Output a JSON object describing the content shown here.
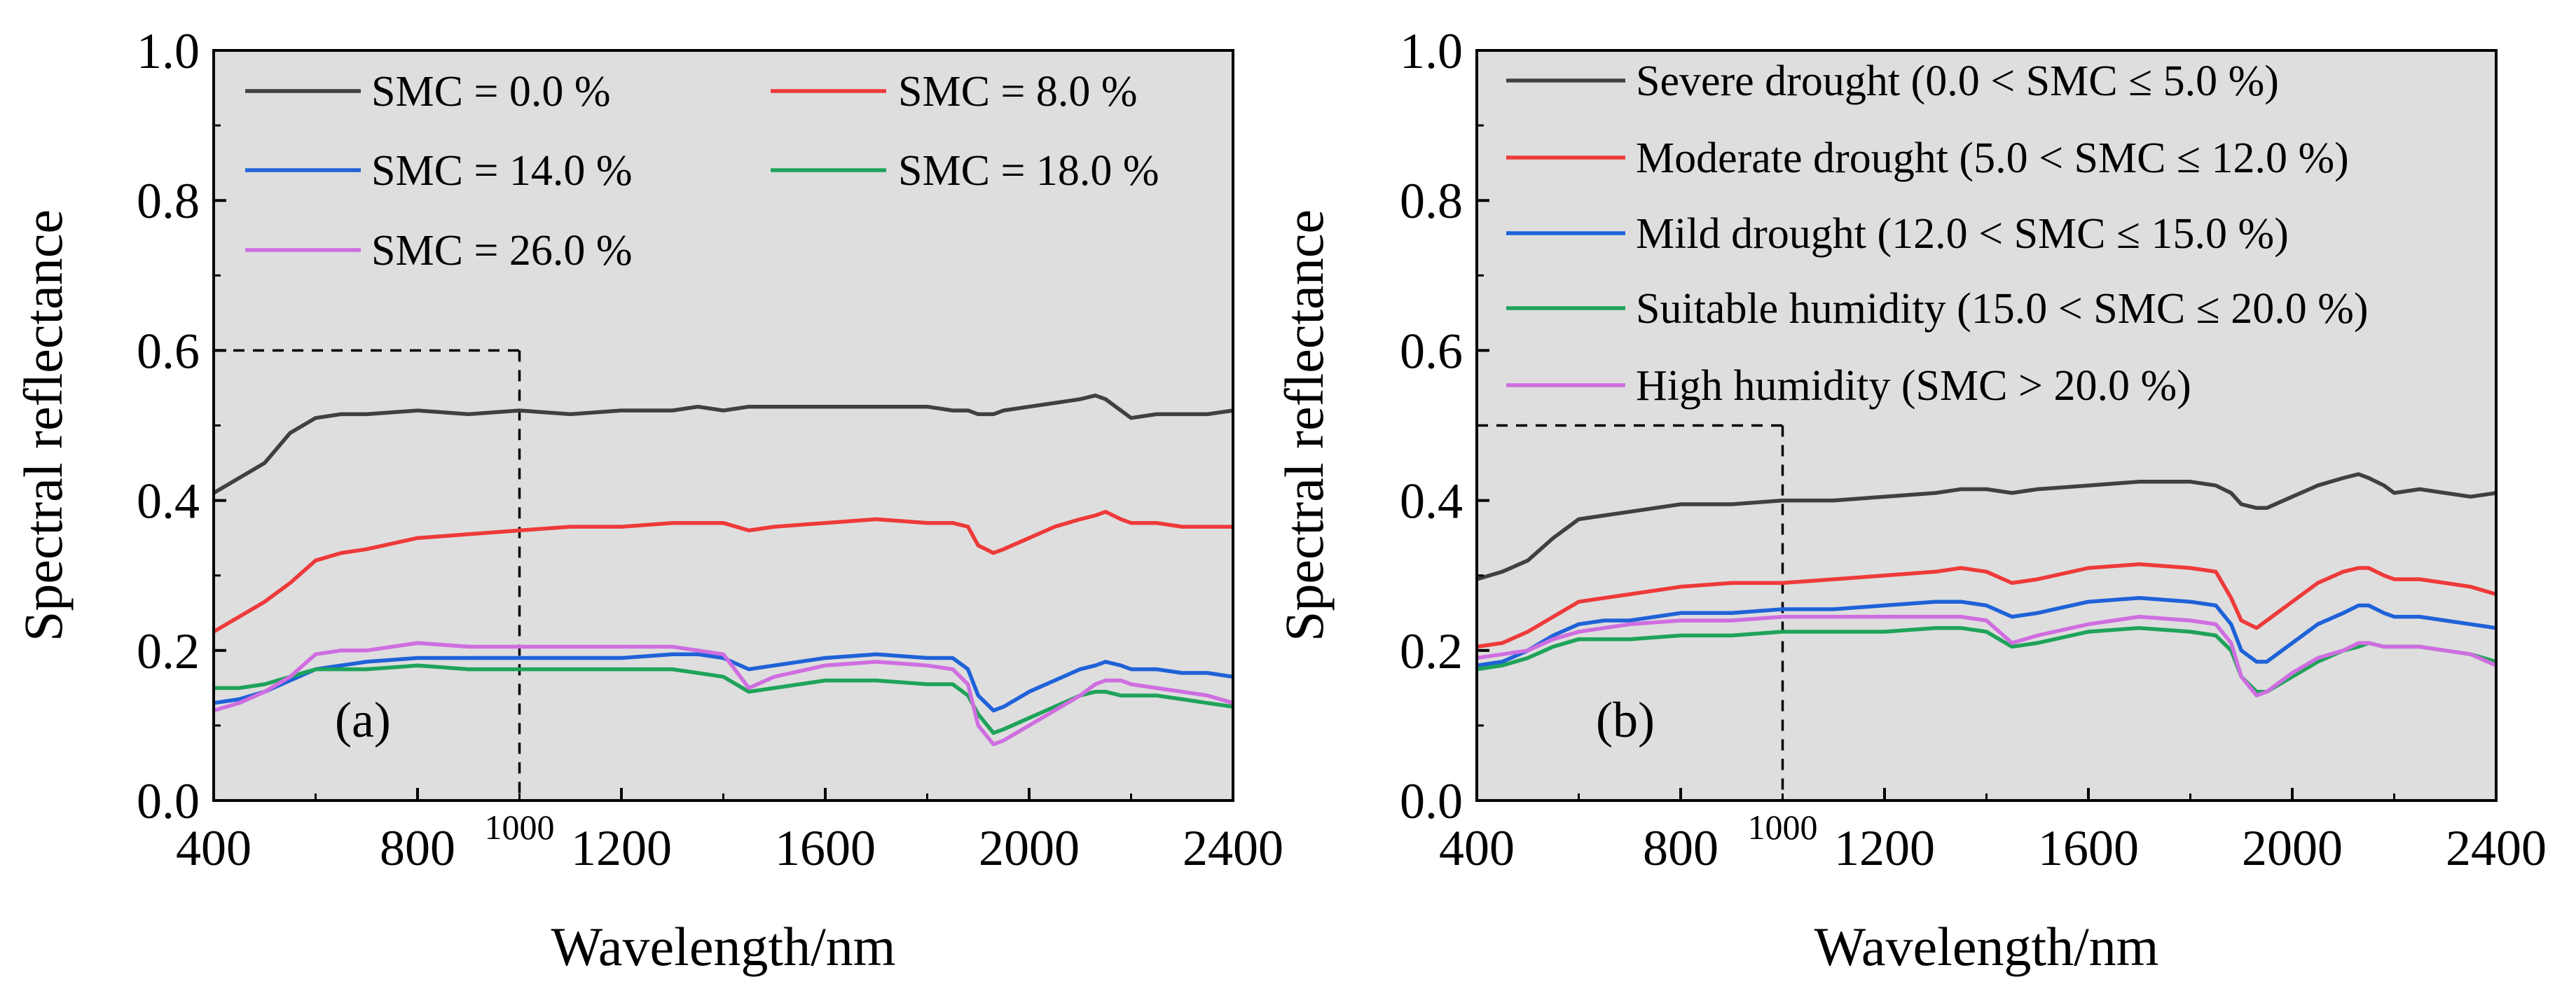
{
  "figure": {
    "background": "#ffffff",
    "plot_background": "#dedede"
  },
  "chart_data": [
    {
      "type": "line",
      "panel_label": "(a)",
      "xlabel": "Wavelength/nm",
      "ylabel": "Spectral reflectance",
      "xlim": [
        400,
        2400
      ],
      "ylim": [
        0.0,
        1.0
      ],
      "xticks": [
        400,
        800,
        1200,
        1600,
        2000,
        2400
      ],
      "yticks": [
        0.0,
        0.2,
        0.4,
        0.6,
        0.8,
        1.0
      ],
      "xtick_labels": [
        "400",
        "800",
        "1200",
        "1600",
        "2000",
        "2400"
      ],
      "ytick_labels": [
        "0.0",
        "0.2",
        "0.4",
        "0.6",
        "0.8",
        "1.0"
      ],
      "extra_tick_label": "1000",
      "extra_tick_value": 1000,
      "reference_box": {
        "x_max": 1000,
        "y_max": 0.6
      },
      "legend_columns": 2,
      "x": [
        400,
        450,
        500,
        550,
        600,
        650,
        700,
        800,
        900,
        1000,
        1100,
        1200,
        1300,
        1350,
        1400,
        1450,
        1500,
        1600,
        1700,
        1800,
        1850,
        1880,
        1900,
        1930,
        1950,
        2000,
        2050,
        2100,
        2130,
        2150,
        2180,
        2200,
        2250,
        2300,
        2350,
        2400
      ],
      "series": [
        {
          "name": "SMC = 0.0 %",
          "label": "SMC = 0.0 %",
          "color": "#404040",
          "values": [
            0.41,
            0.43,
            0.45,
            0.49,
            0.51,
            0.515,
            0.515,
            0.52,
            0.515,
            0.52,
            0.515,
            0.52,
            0.52,
            0.525,
            0.52,
            0.525,
            0.525,
            0.525,
            0.525,
            0.525,
            0.52,
            0.52,
            0.515,
            0.515,
            0.52,
            0.525,
            0.53,
            0.535,
            0.54,
            0.535,
            0.52,
            0.51,
            0.515,
            0.515,
            0.515,
            0.52
          ]
        },
        {
          "name": "SMC = 8.0 %",
          "label": "SMC = 8.0 %",
          "color": "#ee3a3a",
          "values": [
            0.225,
            0.245,
            0.265,
            0.29,
            0.32,
            0.33,
            0.335,
            0.35,
            0.355,
            0.36,
            0.365,
            0.365,
            0.37,
            0.37,
            0.37,
            0.36,
            0.365,
            0.37,
            0.375,
            0.37,
            0.37,
            0.365,
            0.34,
            0.33,
            0.335,
            0.35,
            0.365,
            0.375,
            0.38,
            0.385,
            0.375,
            0.37,
            0.37,
            0.365,
            0.365,
            0.365
          ]
        },
        {
          "name": "SMC = 14.0 %",
          "label": "SMC = 14.0 %",
          "color": "#1f62d8",
          "values": [
            0.13,
            0.135,
            0.145,
            0.16,
            0.175,
            0.18,
            0.185,
            0.19,
            0.19,
            0.19,
            0.19,
            0.19,
            0.195,
            0.195,
            0.19,
            0.175,
            0.18,
            0.19,
            0.195,
            0.19,
            0.19,
            0.175,
            0.14,
            0.12,
            0.125,
            0.145,
            0.16,
            0.175,
            0.18,
            0.185,
            0.18,
            0.175,
            0.175,
            0.17,
            0.17,
            0.165
          ]
        },
        {
          "name": "SMC = 18.0 %",
          "label": "SMC = 18.0 %",
          "color": "#1fa35a",
          "values": [
            0.15,
            0.15,
            0.155,
            0.165,
            0.175,
            0.175,
            0.175,
            0.18,
            0.175,
            0.175,
            0.175,
            0.175,
            0.175,
            0.17,
            0.165,
            0.145,
            0.15,
            0.16,
            0.16,
            0.155,
            0.155,
            0.14,
            0.115,
            0.09,
            0.095,
            0.11,
            0.125,
            0.14,
            0.145,
            0.145,
            0.14,
            0.14,
            0.14,
            0.135,
            0.13,
            0.125
          ]
        },
        {
          "name": "SMC = 26.0 %",
          "label": "SMC = 26.0 %",
          "color": "#cf6ee0",
          "values": [
            0.12,
            0.13,
            0.145,
            0.165,
            0.195,
            0.2,
            0.2,
            0.21,
            0.205,
            0.205,
            0.205,
            0.205,
            0.205,
            0.2,
            0.195,
            0.15,
            0.165,
            0.18,
            0.185,
            0.18,
            0.175,
            0.155,
            0.1,
            0.075,
            0.08,
            0.1,
            0.12,
            0.14,
            0.155,
            0.16,
            0.16,
            0.155,
            0.15,
            0.145,
            0.14,
            0.13
          ]
        }
      ]
    },
    {
      "type": "line",
      "panel_label": "(b)",
      "xlabel": "Wavelength/nm",
      "ylabel": "Spectral reflectance",
      "xlim": [
        400,
        2400
      ],
      "ylim": [
        0.0,
        1.0
      ],
      "xticks": [
        400,
        800,
        1200,
        1600,
        2000,
        2400
      ],
      "yticks": [
        0.0,
        0.2,
        0.4,
        0.6,
        0.8,
        1.0
      ],
      "xtick_labels": [
        "400",
        "800",
        "1200",
        "1600",
        "2000",
        "2400"
      ],
      "ytick_labels": [
        "0.0",
        "0.2",
        "0.4",
        "0.6",
        "0.8",
        "1.0"
      ],
      "extra_tick_label": "1000",
      "extra_tick_value": 1000,
      "reference_box": {
        "x_max": 1000,
        "y_max": 0.5
      },
      "legend_columns": 1,
      "x": [
        400,
        450,
        500,
        550,
        600,
        650,
        700,
        800,
        900,
        1000,
        1100,
        1200,
        1300,
        1350,
        1400,
        1450,
        1500,
        1600,
        1700,
        1800,
        1850,
        1880,
        1900,
        1930,
        1950,
        2000,
        2050,
        2100,
        2130,
        2150,
        2180,
        2200,
        2250,
        2300,
        2350,
        2400
      ],
      "series": [
        {
          "name": "Severe drought",
          "label": "Severe drought (0.0 < SMC ≤ 5.0 %)",
          "color": "#404040",
          "values": [
            0.295,
            0.305,
            0.32,
            0.35,
            0.375,
            0.38,
            0.385,
            0.395,
            0.395,
            0.4,
            0.4,
            0.405,
            0.41,
            0.415,
            0.415,
            0.41,
            0.415,
            0.42,
            0.425,
            0.425,
            0.42,
            0.41,
            0.395,
            0.39,
            0.39,
            0.405,
            0.42,
            0.43,
            0.435,
            0.43,
            0.42,
            0.41,
            0.415,
            0.41,
            0.405,
            0.41
          ]
        },
        {
          "name": "Moderate drought",
          "label": "Moderate drought (5.0 < SMC ≤ 12.0 %)",
          "color": "#ee3a3a",
          "values": [
            0.205,
            0.21,
            0.225,
            0.245,
            0.265,
            0.27,
            0.275,
            0.285,
            0.29,
            0.29,
            0.295,
            0.3,
            0.305,
            0.31,
            0.305,
            0.29,
            0.295,
            0.31,
            0.315,
            0.31,
            0.305,
            0.27,
            0.24,
            0.23,
            0.24,
            0.265,
            0.29,
            0.305,
            0.31,
            0.31,
            0.3,
            0.295,
            0.295,
            0.29,
            0.285,
            0.275
          ]
        },
        {
          "name": "Mild drought",
          "label": "Mild drought (12.0 < SMC ≤ 15.0 %)",
          "color": "#1f62d8",
          "values": [
            0.18,
            0.185,
            0.2,
            0.22,
            0.235,
            0.24,
            0.24,
            0.25,
            0.25,
            0.255,
            0.255,
            0.26,
            0.265,
            0.265,
            0.26,
            0.245,
            0.25,
            0.265,
            0.27,
            0.265,
            0.26,
            0.235,
            0.2,
            0.185,
            0.185,
            0.21,
            0.235,
            0.25,
            0.26,
            0.26,
            0.25,
            0.245,
            0.245,
            0.24,
            0.235,
            0.23
          ]
        },
        {
          "name": "Suitable humidity",
          "label": "Suitable humidity (15.0 < SMC ≤ 20.0 %)",
          "color": "#1fa35a",
          "values": [
            0.175,
            0.18,
            0.19,
            0.205,
            0.215,
            0.215,
            0.215,
            0.22,
            0.22,
            0.225,
            0.225,
            0.225,
            0.23,
            0.23,
            0.225,
            0.205,
            0.21,
            0.225,
            0.23,
            0.225,
            0.22,
            0.2,
            0.165,
            0.145,
            0.145,
            0.165,
            0.185,
            0.2,
            0.205,
            0.21,
            0.205,
            0.205,
            0.205,
            0.2,
            0.195,
            0.185
          ]
        },
        {
          "name": "High humidity",
          "label": "High humidity (SMC > 20.0 %)",
          "color": "#cf6ee0",
          "values": [
            0.19,
            0.195,
            0.2,
            0.215,
            0.225,
            0.23,
            0.235,
            0.24,
            0.24,
            0.245,
            0.245,
            0.245,
            0.245,
            0.245,
            0.24,
            0.21,
            0.22,
            0.235,
            0.245,
            0.24,
            0.235,
            0.21,
            0.165,
            0.14,
            0.145,
            0.17,
            0.19,
            0.2,
            0.21,
            0.21,
            0.205,
            0.205,
            0.205,
            0.2,
            0.195,
            0.18
          ]
        }
      ]
    }
  ]
}
